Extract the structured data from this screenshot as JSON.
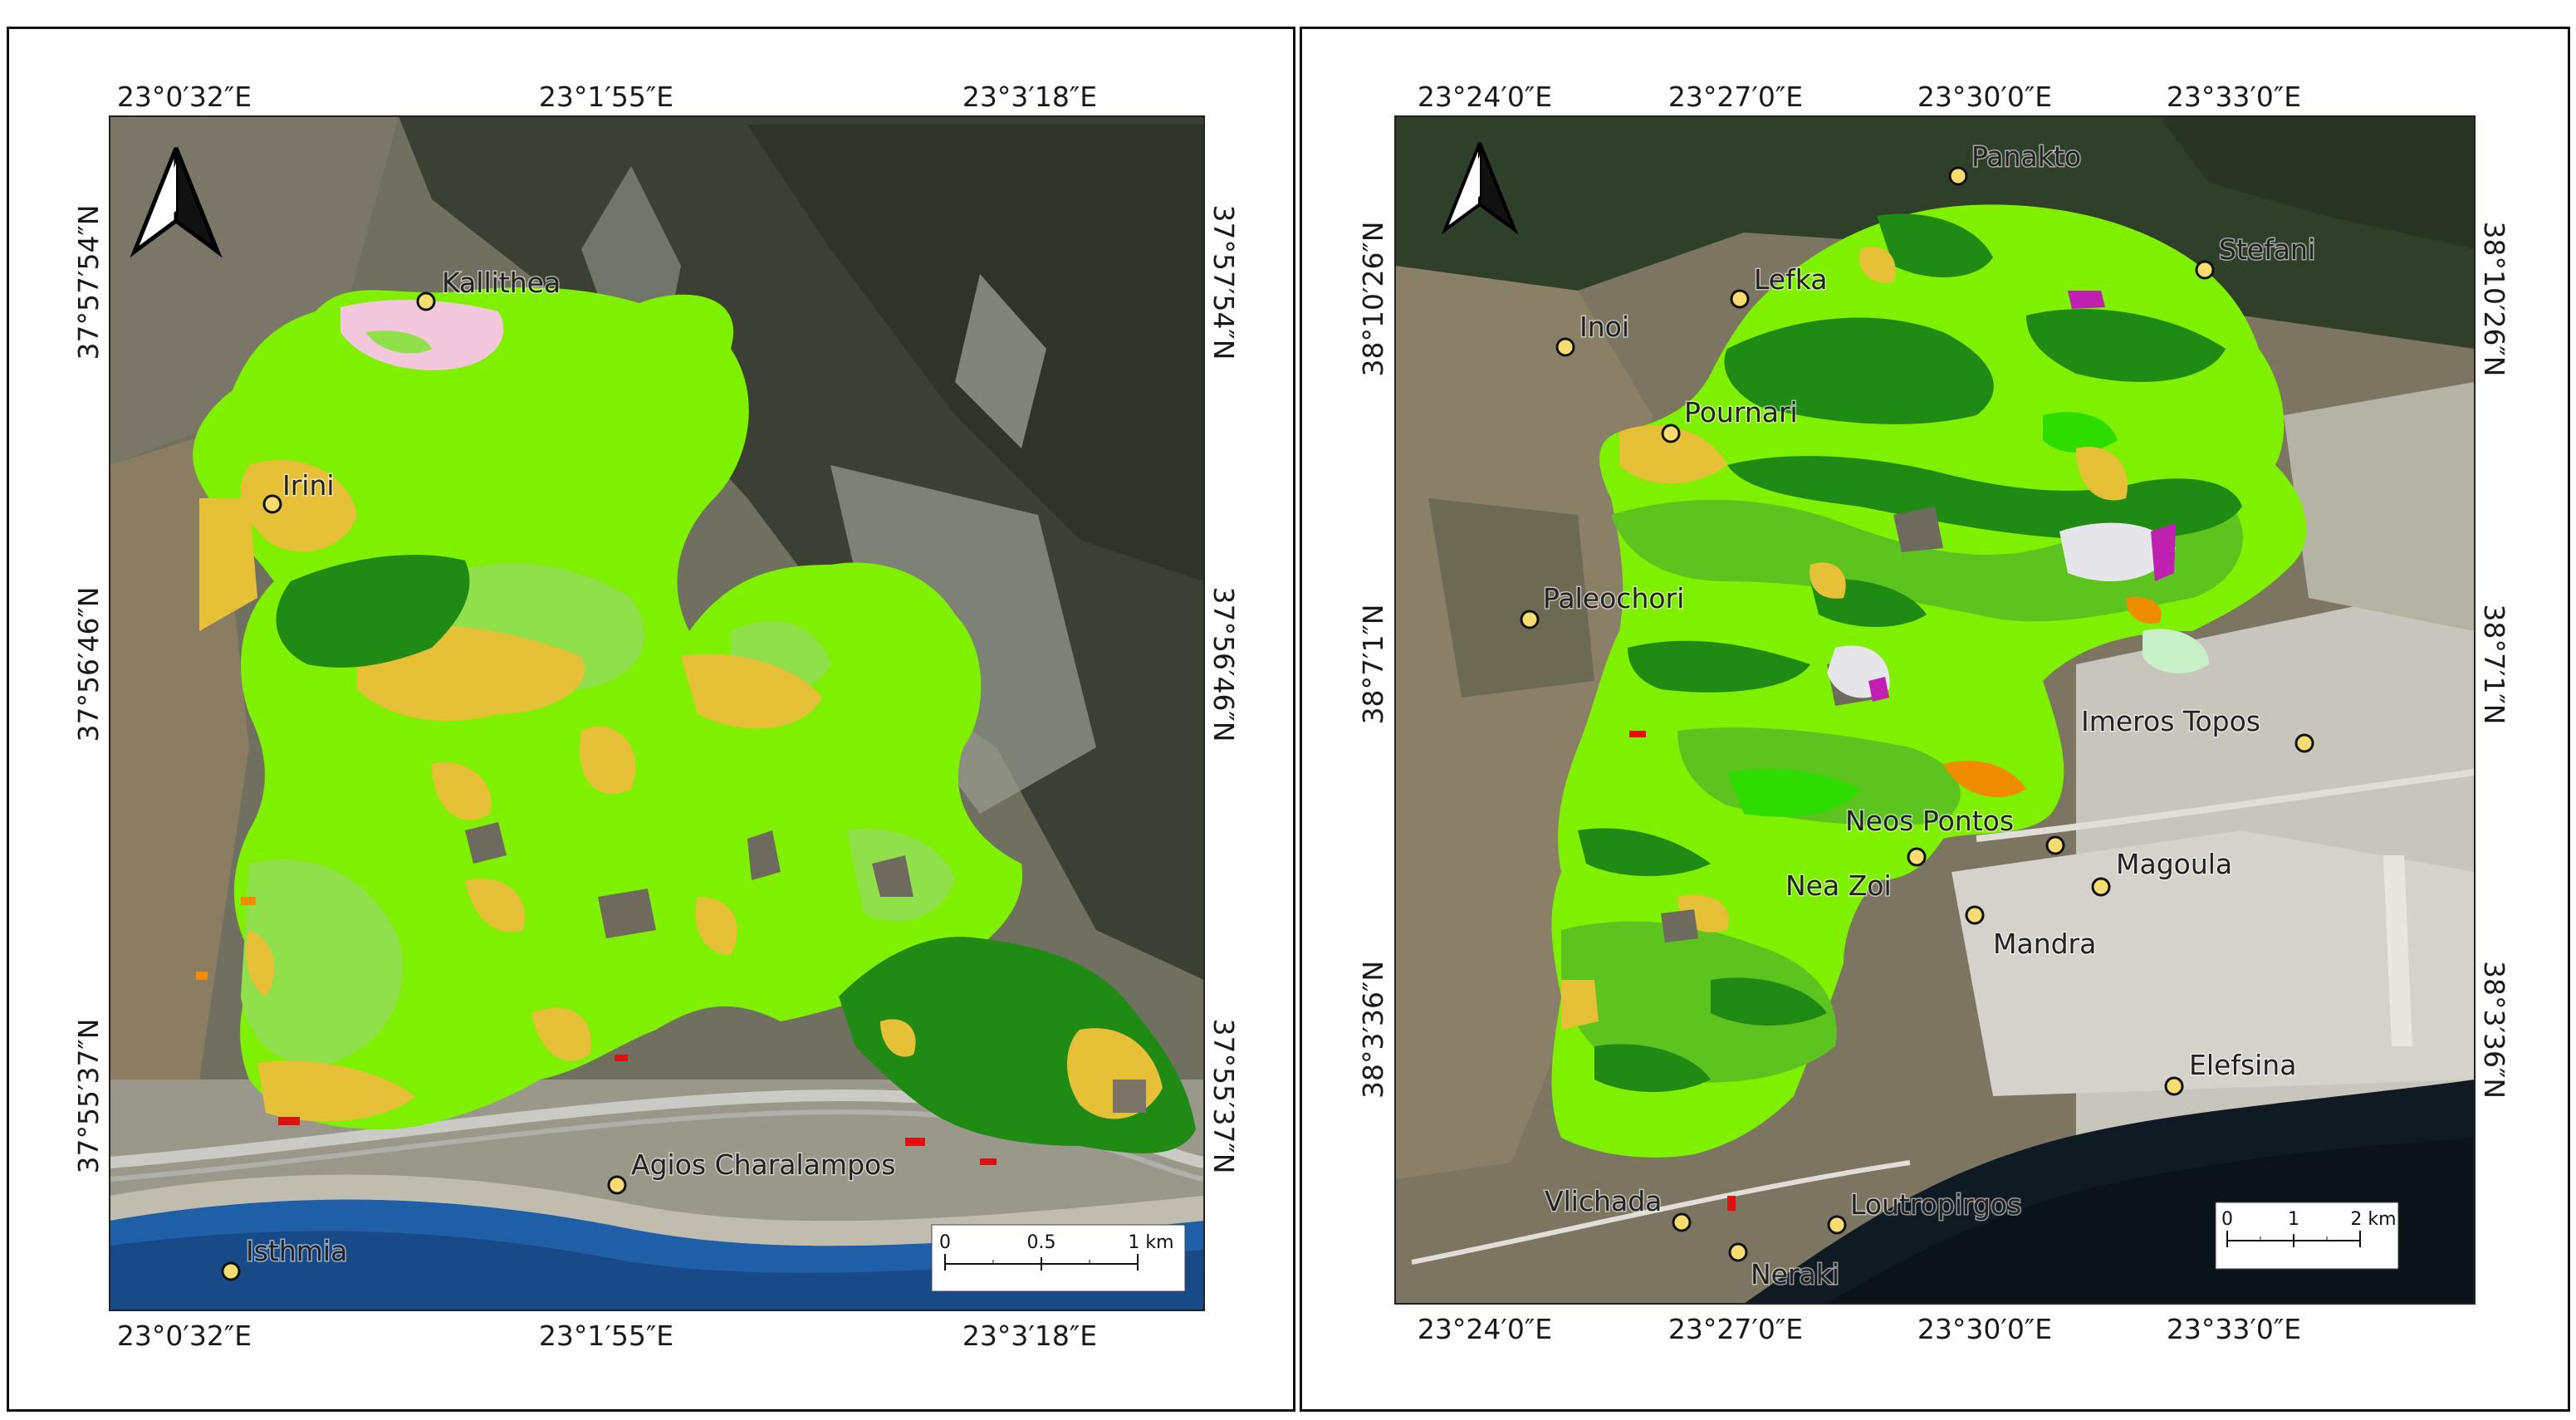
{
  "left_map": {
    "top_lon_labels": [
      "23°0′32″E",
      "23°1′55″E",
      "23°3′18″E"
    ],
    "bottom_lon_labels": [
      "23°0′32″E",
      "23°1′55″E",
      "23°3′18″E"
    ],
    "left_lat_labels": [
      "37°57′54″N",
      "37°56′46″N",
      "37°55′37″N"
    ],
    "right_lat_labels": [
      "37°57′54″N",
      "37°56′46″N",
      "37°55′37″N"
    ],
    "places": [
      {
        "name": "Kallithea"
      },
      {
        "name": "Irini"
      },
      {
        "name": "Agios Charalampos"
      },
      {
        "name": "Isthmia"
      }
    ],
    "scale_bar": {
      "ticks": [
        "0",
        "0.5",
        "1 km"
      ]
    },
    "north_arrow": "north-arrow-icon"
  },
  "right_map": {
    "top_lon_labels": [
      "23°24′0″E",
      "23°27′0″E",
      "23°30′0″E",
      "23°33′0″E"
    ],
    "bottom_lon_labels": [
      "23°24′0″E",
      "23°27′0″E",
      "23°30′0″E",
      "23°33′0″E"
    ],
    "left_lat_labels": [
      "38°10′26″N",
      "38°7′1″N",
      "38°3′36″N"
    ],
    "right_lat_labels": [
      "38°10′26″N",
      "38°7′1″N",
      "38°3′36″N"
    ],
    "places": [
      {
        "name": "Panakto"
      },
      {
        "name": "Stefani"
      },
      {
        "name": "Lefka"
      },
      {
        "name": "Inoi"
      },
      {
        "name": "Pournari"
      },
      {
        "name": "Paleochori"
      },
      {
        "name": "Imeros Topos"
      },
      {
        "name": "Neos Pontos"
      },
      {
        "name": "Magoula"
      },
      {
        "name": "Nea Zoi"
      },
      {
        "name": "Mandra"
      },
      {
        "name": "Elefsina"
      },
      {
        "name": "Vlichada"
      },
      {
        "name": "Loutropirgos"
      },
      {
        "name": "Neraki"
      }
    ],
    "scale_bar": {
      "ticks": [
        "0",
        "1",
        "2 km"
      ]
    },
    "north_arrow": "north-arrow-icon"
  },
  "colors": {
    "burn_light_green": "#7ef000",
    "burn_pale_green": "#8fe04a",
    "burn_mid_green": "#5cc31f",
    "burn_dark_green": "#1f8a14",
    "burn_yellow": "#e6c036",
    "burn_orange": "#f08c00",
    "burn_red": "#e01010",
    "burn_magenta": "#c020b0",
    "burn_pink": "#f4c8dc",
    "place_marker": "#f7dc6f",
    "sea": "#1f5fa8"
  }
}
